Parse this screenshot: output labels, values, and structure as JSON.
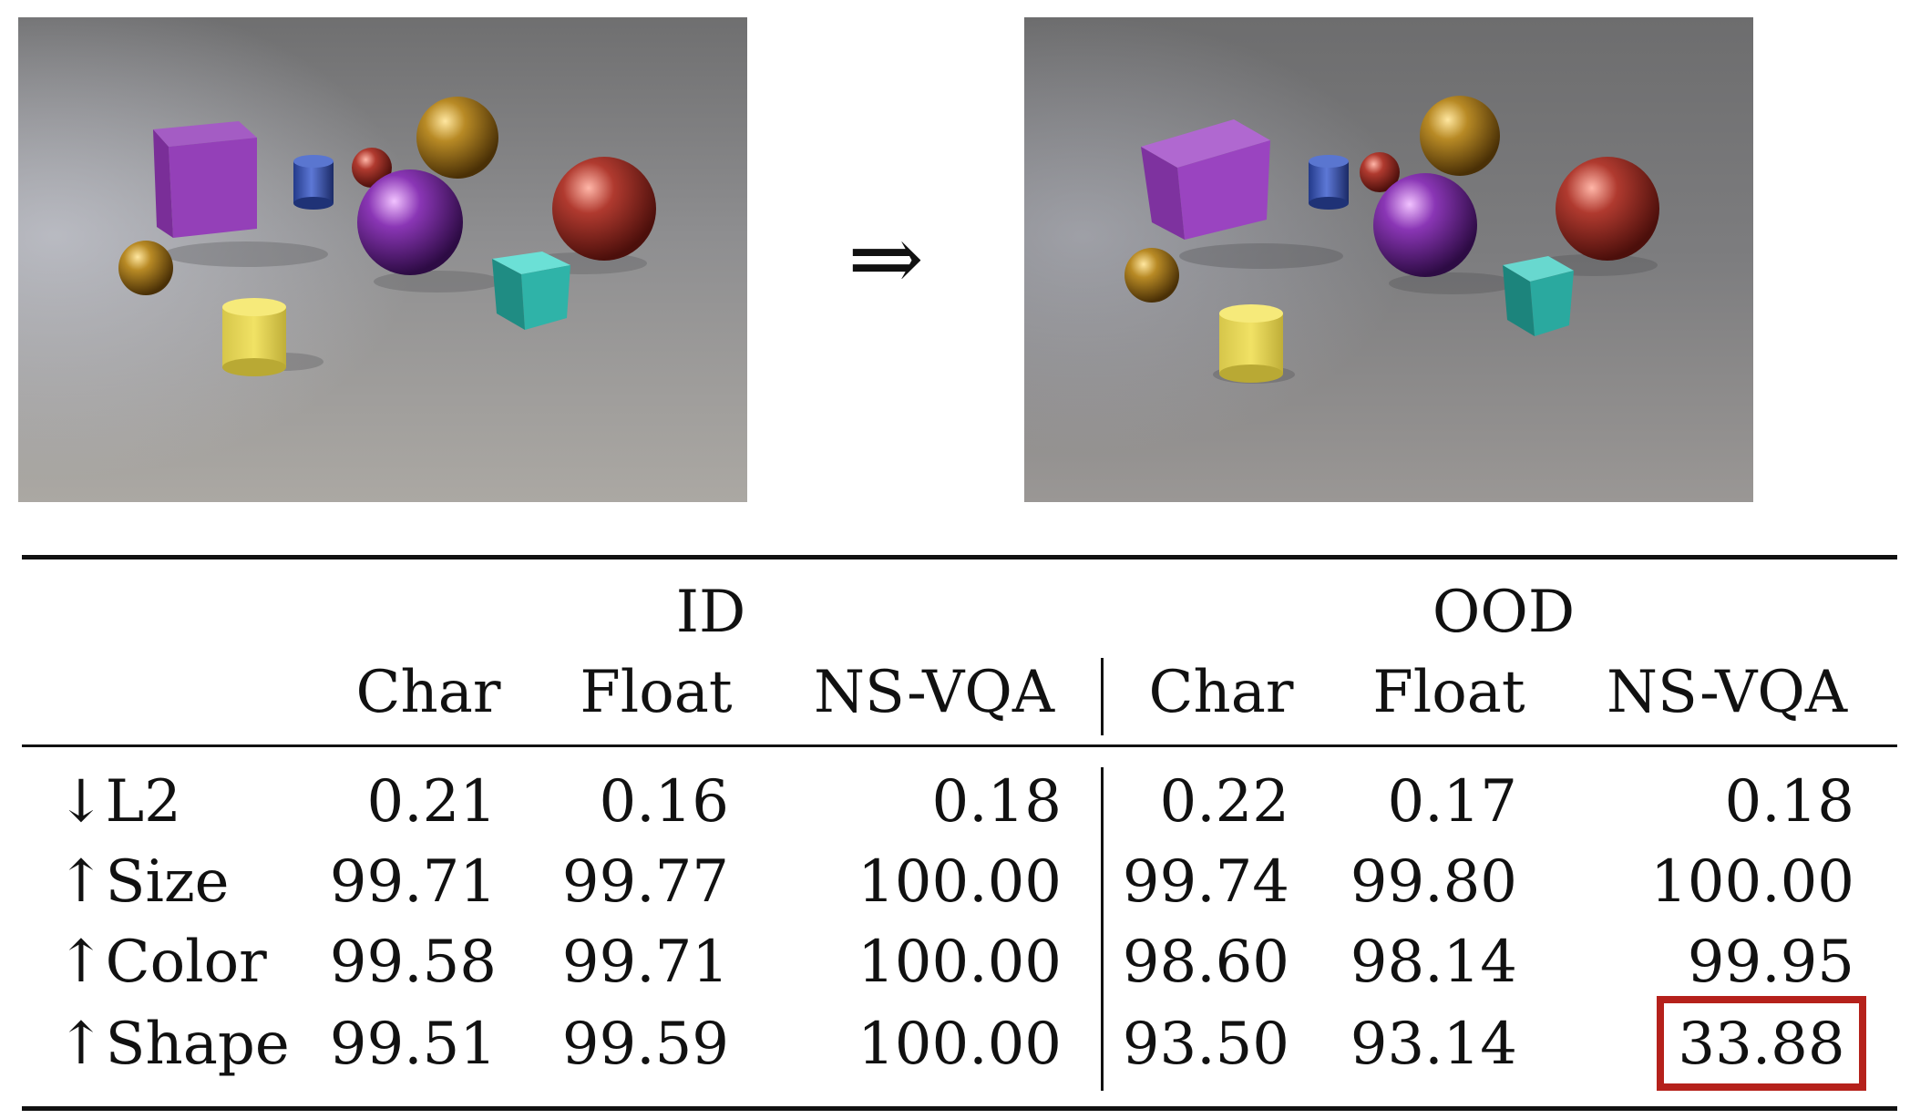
{
  "figure": {
    "arrow_symbol": "⇒"
  },
  "table": {
    "group_headers": [
      "ID",
      "OOD"
    ],
    "column_headers": [
      "Char",
      "Float",
      "NS-VQA",
      "Char",
      "Float",
      "NS-VQA"
    ],
    "rows": [
      {
        "label": "↓L2",
        "values": [
          "0.21",
          "0.16",
          "0.18",
          "0.22",
          "0.17",
          "0.18"
        ]
      },
      {
        "label": "↑Size",
        "values": [
          "99.71",
          "99.77",
          "100.00",
          "99.74",
          "99.80",
          "100.00"
        ]
      },
      {
        "label": "↑Color",
        "values": [
          "99.58",
          "99.71",
          "100.00",
          "98.60",
          "98.14",
          "99.95"
        ]
      },
      {
        "label": "↑Shape",
        "values": [
          "99.51",
          "99.59",
          "100.00",
          "93.50",
          "93.14",
          "33.88"
        ]
      }
    ],
    "highlight": {
      "row": 3,
      "column": 5,
      "color": "#b5211b"
    }
  }
}
